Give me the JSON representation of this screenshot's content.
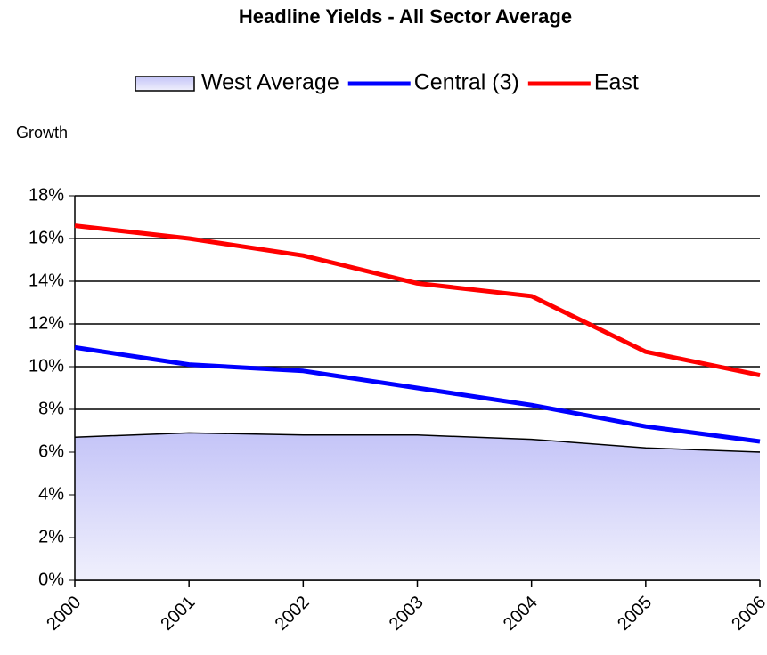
{
  "chart_data": {
    "type": "line",
    "title": "Headline Yields - All Sector Average",
    "y_label": "Growth",
    "categories": [
      "2000",
      "2001",
      "2002",
      "2003",
      "2004",
      "2005",
      "2006"
    ],
    "series": [
      {
        "name": "West Average",
        "color": "#ccccff",
        "kind": "area",
        "values": [
          6.7,
          6.9,
          6.8,
          6.8,
          6.6,
          6.2,
          6.0
        ]
      },
      {
        "name": "Central (3)",
        "color": "#0000ff",
        "kind": "line",
        "values": [
          10.9,
          10.1,
          9.8,
          9.0,
          8.2,
          7.2,
          6.5
        ]
      },
      {
        "name": "East",
        "color": "#ff0000",
        "kind": "line",
        "values": [
          16.6,
          16.0,
          15.2,
          13.9,
          13.3,
          10.7,
          9.6
        ]
      }
    ],
    "ylim": [
      0,
      18
    ],
    "yticks": [
      {
        "value": 0,
        "label": "0%"
      },
      {
        "value": 2,
        "label": "2%"
      },
      {
        "value": 4,
        "label": "4%"
      },
      {
        "value": 6,
        "label": "6%"
      },
      {
        "value": 8,
        "label": "8%"
      },
      {
        "value": 10,
        "label": "10%"
      },
      {
        "value": 12,
        "label": "12%"
      },
      {
        "value": 14,
        "label": "14%"
      },
      {
        "value": 16,
        "label": "16%"
      },
      {
        "value": 18,
        "label": "18%"
      }
    ],
    "grid": true,
    "legend": "top"
  }
}
